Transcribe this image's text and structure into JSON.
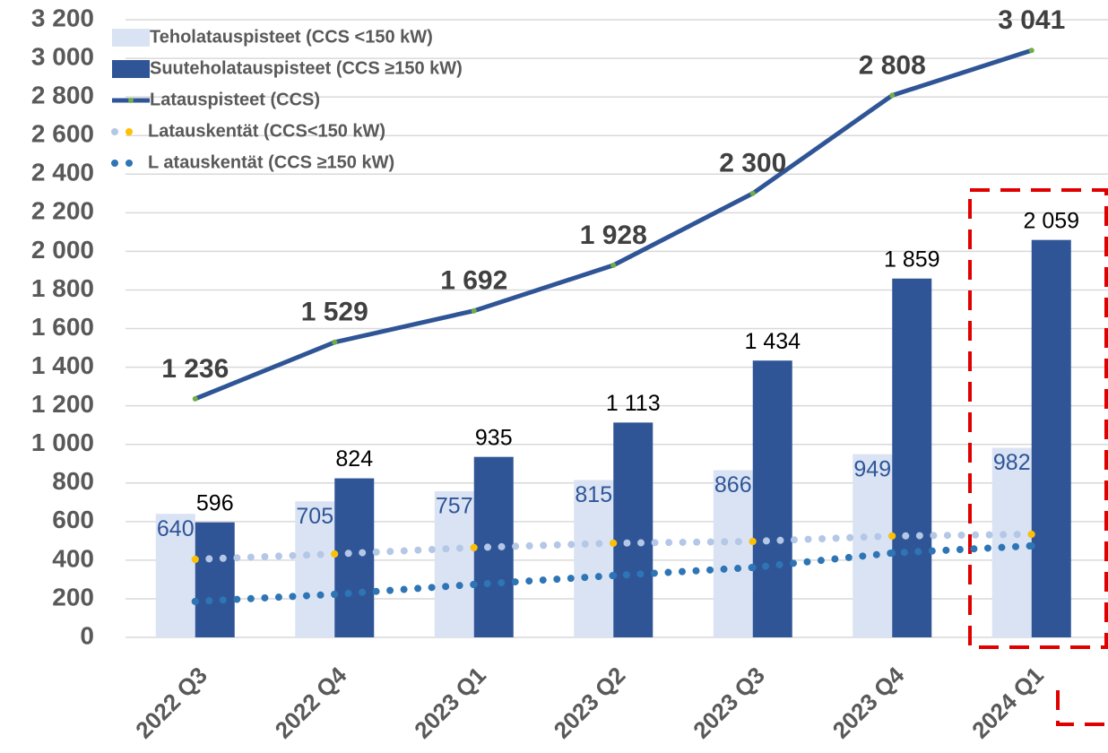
{
  "chart_data": {
    "type": "bar",
    "categories": [
      "2022 Q3",
      "2022 Q4",
      "2023 Q1",
      "2023 Q2",
      "2023 Q3",
      "2023 Q4",
      "2024 Q1"
    ],
    "series": [
      {
        "name": "Teholatauspisteet (CCS <150 kW)",
        "type": "bar",
        "color": "#dae3f3",
        "label_color": "#2f5597",
        "values": [
          640,
          705,
          757,
          815,
          866,
          949,
          982
        ]
      },
      {
        "name": "Suuteholatauspisteet (CCS ≥150 kW)",
        "type": "bar",
        "color": "#2f5597",
        "label_color": "#000000",
        "values": [
          596,
          824,
          935,
          1113,
          1434,
          1859,
          2059
        ],
        "value_labels": [
          "596",
          "824",
          "935",
          "1 113",
          "1 434",
          "1 859",
          "2 059"
        ]
      },
      {
        "name": "Latauspisteet (CCS)",
        "type": "line",
        "color": "#2f5597",
        "marker_color": "#70ad47",
        "label_color": "#404040",
        "values": [
          1236,
          1529,
          1692,
          1928,
          2300,
          2808,
          3041
        ],
        "value_labels": [
          "1 236",
          "1 529",
          "1 692",
          "1 928",
          "2 300",
          "2 808",
          "3 041"
        ]
      },
      {
        "name": "Latauskentät (CCS<150 kW)",
        "type": "dotted",
        "color": "#b4c7e7",
        "marker_color": "#ffc000",
        "values": [
          404,
          432,
          465,
          488,
          497,
          525,
          534
        ]
      },
      {
        "name": "L atauskentät (CCS ≥150 kW)",
        "type": "dotted",
        "color": "#2e75b6",
        "marker_color": "#2e75b6",
        "values": [
          186,
          223,
          274,
          320,
          362,
          437,
          474
        ]
      }
    ],
    "ylim": [
      0,
      3200
    ],
    "yticks": [
      0,
      200,
      400,
      600,
      800,
      {
        "value": 1000,
        "label": "1 000"
      },
      {
        "value": 1200,
        "label": "1 200"
      },
      {
        "value": 1400,
        "label": "1 400"
      },
      {
        "value": 1600,
        "label": "1 600"
      },
      {
        "value": 1800,
        "label": "1 800"
      },
      {
        "value": 2000,
        "label": "2 000"
      },
      {
        "value": 2200,
        "label": "2 200"
      },
      {
        "value": 2400,
        "label": "2 400"
      },
      {
        "value": 2600,
        "label": "2 600"
      },
      {
        "value": 2800,
        "label": "2 800"
      },
      {
        "value": 3000,
        "label": "3 000"
      },
      {
        "value": 3200,
        "label": "3 200"
      }
    ],
    "grid": true
  }
}
